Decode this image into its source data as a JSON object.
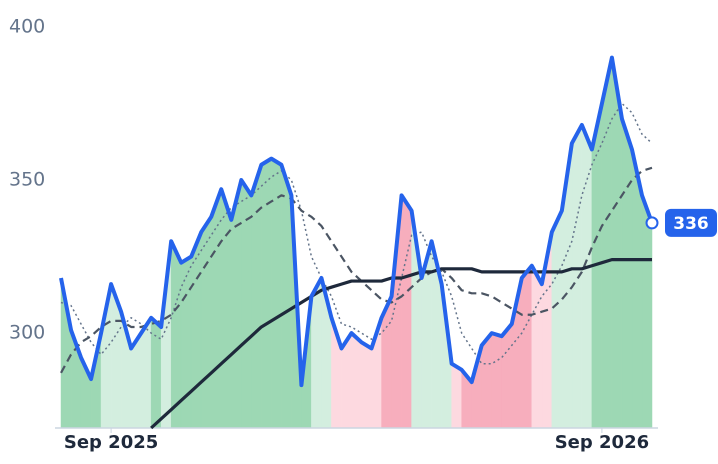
{
  "chart_data": {
    "type": "line",
    "categories": [
      null,
      null,
      null,
      null,
      null,
      "Sep 2025",
      null,
      null,
      null,
      null,
      null,
      null,
      null,
      null,
      null,
      null,
      null,
      null,
      null,
      null,
      null,
      null,
      null,
      null,
      null,
      null,
      null,
      null,
      null,
      null,
      null,
      null,
      null,
      null,
      null,
      null,
      null,
      null,
      null,
      null,
      null,
      null,
      null,
      null,
      null,
      null,
      null,
      null,
      null,
      null,
      null,
      null,
      null,
      null,
      "Sep 2026",
      null,
      null,
      null,
      null,
      null
    ],
    "ylim": [
      269,
      400
    ],
    "yticks": [
      300,
      350,
      400
    ],
    "series": [
      {
        "color": "#2563eb",
        "values": [
          318,
          301,
          292,
          285,
          300,
          316,
          307,
          295,
          300,
          305,
          302,
          330,
          323,
          325,
          333,
          338,
          347,
          337,
          350,
          345,
          355,
          357,
          355,
          345,
          283,
          312,
          318,
          305,
          295,
          300,
          297,
          295,
          305,
          312,
          345,
          340,
          318,
          330,
          316,
          290,
          288,
          284,
          296,
          300,
          299,
          303,
          318,
          322,
          316,
          333,
          340,
          362,
          368,
          360,
          375,
          390,
          370,
          360,
          345,
          336
        ]
      },
      {
        "color": "#64748b",
        "style": "dotted",
        "values": [
          310,
          309,
          303,
          297,
          293,
          297,
          302,
          305,
          303,
          300,
          298,
          305,
          315,
          322,
          327,
          332,
          337,
          341,
          343,
          345,
          348,
          351,
          353,
          350,
          340,
          325,
          318,
          312,
          303,
          302,
          300,
          298,
          300,
          304,
          318,
          332,
          333,
          325,
          320,
          312,
          300,
          295,
          290,
          290,
          292,
          296,
          300,
          306,
          312,
          316,
          322,
          330,
          345,
          355,
          362,
          370,
          375,
          372,
          365,
          362
        ]
      },
      {
        "color": "#4b5563",
        "style": "dashed",
        "values": [
          287,
          293,
          297,
          299,
          302,
          304,
          304,
          302,
          302,
          303,
          304,
          306,
          310,
          315,
          320,
          325,
          330,
          334,
          336,
          338,
          341,
          343,
          345,
          344,
          340,
          338,
          335,
          330,
          325,
          320,
          317,
          314,
          311,
          310,
          312,
          315,
          318,
          320,
          321,
          318,
          314,
          313,
          313,
          312,
          310,
          308,
          306,
          306,
          307,
          308,
          311,
          315,
          320,
          328,
          335,
          340,
          345,
          350,
          353,
          354
        ]
      },
      {
        "color": "#1e293b",
        "style": "solid",
        "values": [
          null,
          null,
          null,
          null,
          null,
          null,
          null,
          null,
          null,
          269,
          272,
          275,
          278,
          281,
          284,
          287,
          290,
          293,
          296,
          299,
          302,
          304,
          306,
          308,
          310,
          312,
          314,
          315,
          316,
          317,
          317,
          317,
          317,
          318,
          318,
          319,
          320,
          320,
          321,
          321,
          321,
          321,
          320,
          320,
          320,
          320,
          320,
          320,
          320,
          320,
          320,
          321,
          321,
          322,
          323,
          324,
          324,
          324,
          324,
          324
        ]
      }
    ],
    "zones": [
      "#9dd8b4",
      "#9dd8b4",
      "#9dd8b4",
      "#9dd8b4",
      "#d3eedf",
      "#d3eedf",
      "#d3eedf",
      "#d3eedf",
      "#d3eedf",
      "#9dd8b4",
      "#d3eedf",
      "#9dd8b4",
      "#9dd8b4",
      "#9dd8b4",
      "#9dd8b4",
      "#9dd8b4",
      "#9dd8b4",
      "#9dd8b4",
      "#9dd8b4",
      "#9dd8b4",
      "#9dd8b4",
      "#9dd8b4",
      "#9dd8b4",
      "#9dd8b4",
      "#9dd8b4",
      "#d3eedf",
      "#d3eedf",
      "#fdd9e0",
      "#fdd9e0",
      "#fdd9e0",
      "#fdd9e0",
      "#fdd9e0",
      "#f7aebd",
      "#f7aebd",
      "#f7aebd",
      "#d3eedf",
      "#d3eedf",
      "#d3eedf",
      "#d3eedf",
      "#fdd9e0",
      "#f7aebd",
      "#f7aebd",
      "#f7aebd",
      "#f7aebd",
      "#f7aebd",
      "#f7aebd",
      "#f7aebd",
      "#fdd9e0",
      "#fdd9e0",
      "#d3eedf",
      "#d3eedf",
      "#d3eedf",
      "#d3eedf",
      "#9dd8b4",
      "#9dd8b4",
      "#9dd8b4",
      "#9dd8b4",
      "#9dd8b4",
      "#9dd8b4",
      "#9dd8b4"
    ]
  }
}
